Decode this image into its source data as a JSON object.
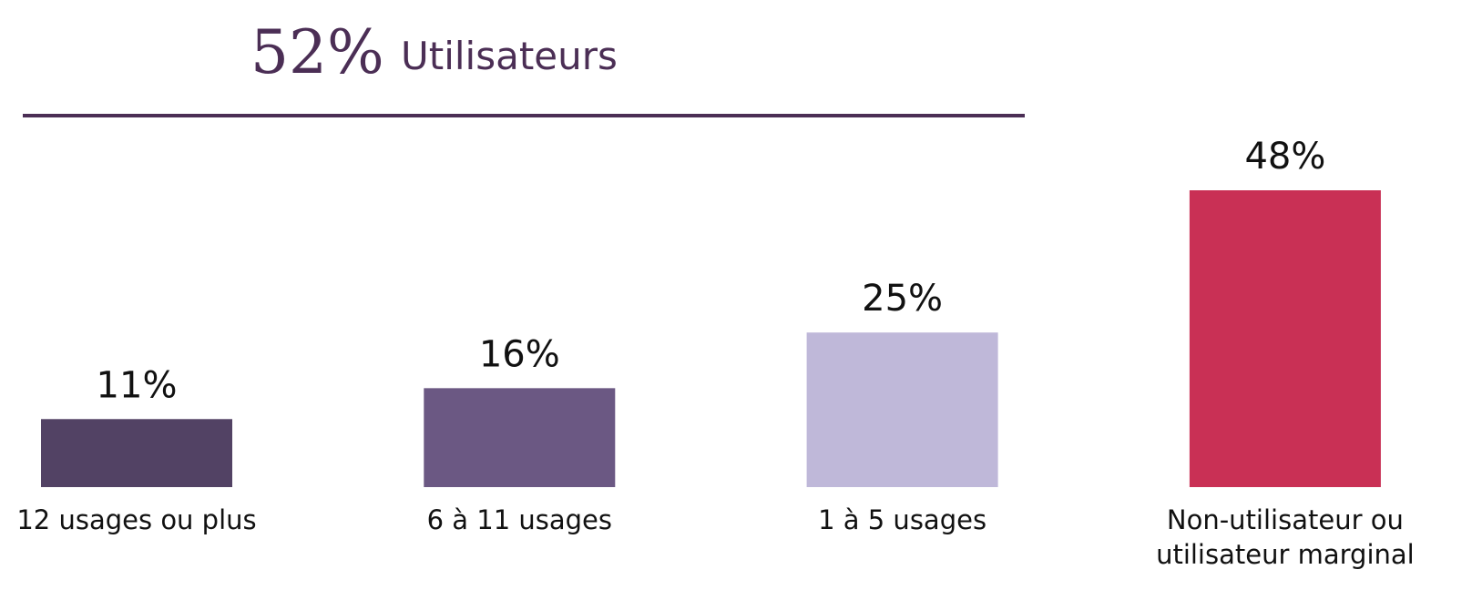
{
  "chart_data": {
    "type": "bar",
    "header": {
      "figure": "52%",
      "text": "Utilisateurs"
    },
    "categories": [
      "12 usages ou plus",
      "6 à 11 usages",
      "1 à 5 usages",
      "Non-utilisateur ou utilisateur marginal"
    ],
    "values": [
      11,
      16,
      25,
      48
    ],
    "value_labels": [
      "11%",
      "16%",
      "25%",
      "48%"
    ],
    "colors": [
      "#524264",
      "#6b5883",
      "#bfb8d9",
      "#c93055"
    ]
  }
}
